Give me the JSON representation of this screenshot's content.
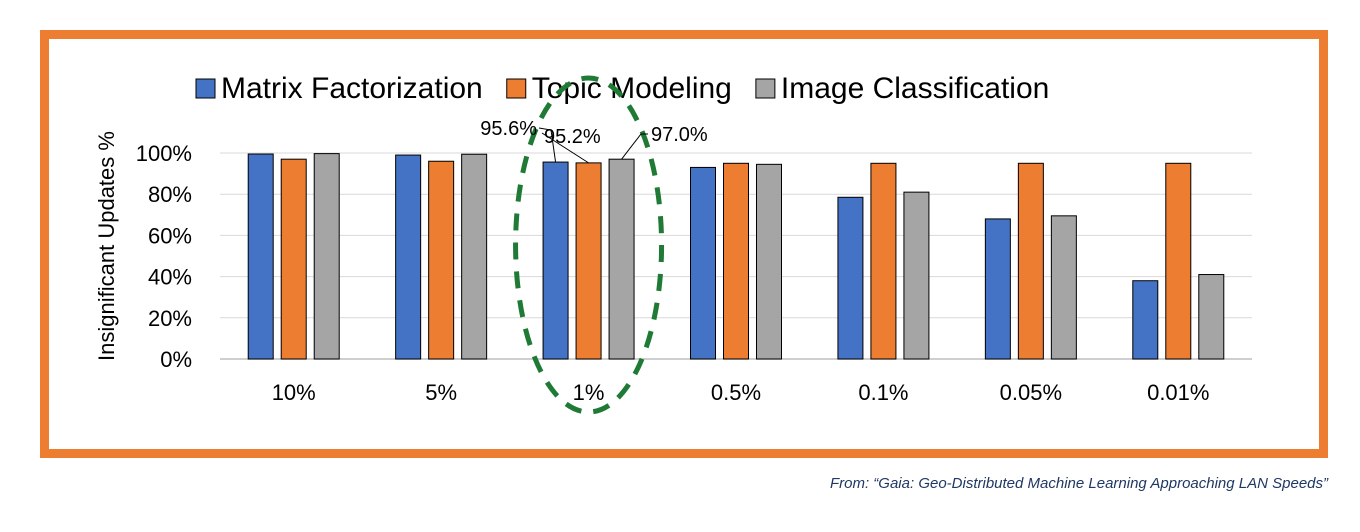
{
  "colors": {
    "frame": "#ed7d31",
    "series": [
      "#4472c4",
      "#ed7d31",
      "#a5a5a5"
    ],
    "highlight": "#1e7a35",
    "source_text": "#1f3864"
  },
  "source_note": "From: “Gaia: Geo-Distributed Machine Learning Approaching LAN Speeds”",
  "chart_data": {
    "type": "bar",
    "ylabel": "Insignificant Updates %",
    "ylim": [
      0,
      100
    ],
    "yticks": [
      "0%",
      "20%",
      "40%",
      "60%",
      "80%",
      "100%"
    ],
    "categories": [
      "10%",
      "5%",
      "1%",
      "0.5%",
      "0.1%",
      "0.05%",
      "0.01%"
    ],
    "series": [
      {
        "name": "Matrix Factorization",
        "values": [
          99.5,
          99.0,
          95.6,
          93.0,
          78.5,
          68.0,
          38.0
        ]
      },
      {
        "name": "Topic Modeling",
        "values": [
          97.0,
          96.0,
          95.2,
          95.0,
          95.0,
          95.0,
          95.0
        ]
      },
      {
        "name": "Image Classification",
        "values": [
          99.7,
          99.4,
          97.0,
          94.5,
          81.0,
          69.5,
          41.0
        ]
      }
    ],
    "legend": "top",
    "grid": true,
    "annotations": [
      "95.6%",
      "95.2%",
      "97.0%"
    ],
    "highlighted_category": "1%"
  }
}
